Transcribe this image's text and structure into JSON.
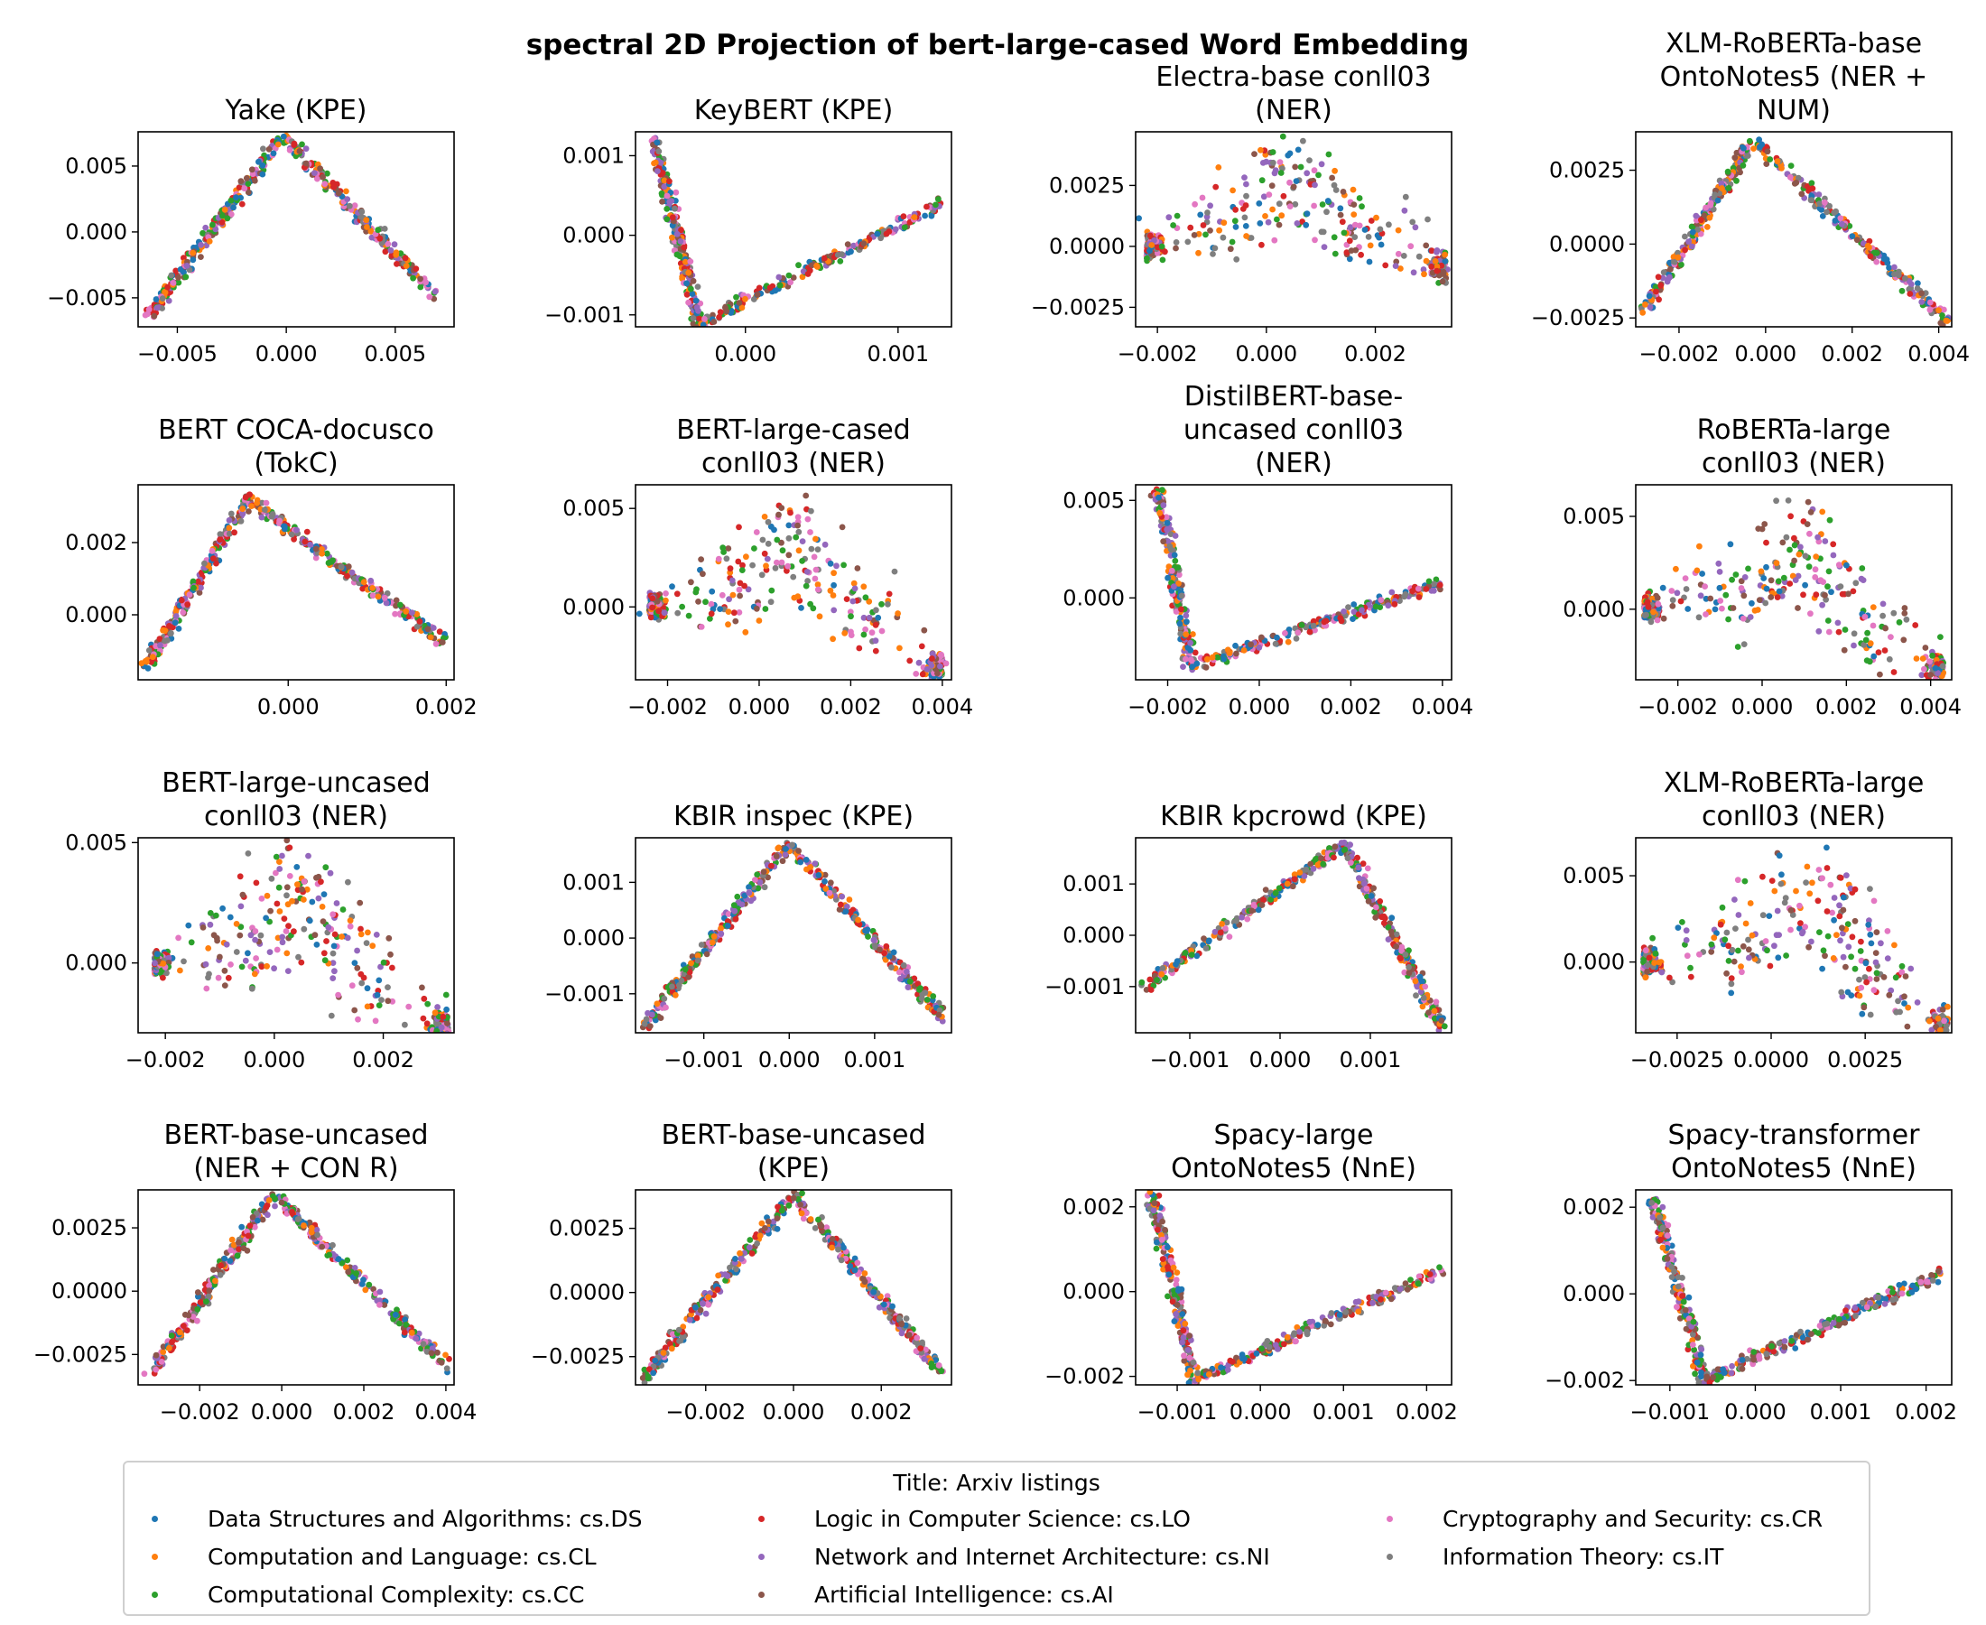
{
  "figure_title": "spectral 2D Projection of bert-large-cased Word Embedding",
  "legend": {
    "title": "Title: Arxiv listings",
    "items": [
      {
        "label": "Data Structures and Algorithms: cs.DS",
        "color": "#1f77b4"
      },
      {
        "label": "Computation and Language: cs.CL",
        "color": "#ff7f0e"
      },
      {
        "label": "Computational Complexity: cs.CC",
        "color": "#2ca02c"
      },
      {
        "label": "Logic in Computer Science: cs.LO",
        "color": "#d62728"
      },
      {
        "label": "Network and Internet Architecture: cs.NI",
        "color": "#9467bd"
      },
      {
        "label": "Artificial Intelligence: cs.AI",
        "color": "#8c564b"
      },
      {
        "label": "Cryptography and Security: cs.CR",
        "color": "#e377c2"
      },
      {
        "label": "Information Theory: cs.IT",
        "color": "#7f7f7f"
      }
    ]
  },
  "chart_data": [
    {
      "type": "scatter",
      "title": [
        "Yake (KPE)"
      ],
      "xlim": [
        -0.0068,
        0.0077
      ],
      "ylim": [
        -0.0072,
        0.0076
      ],
      "xticks": [
        {
          "v": -0.005,
          "l": "−0.005"
        },
        {
          "v": 0.0,
          "l": "0.000"
        },
        {
          "v": 0.005,
          "l": "0.005"
        }
      ],
      "yticks": [
        {
          "v": 0.005,
          "l": "0.005"
        },
        {
          "v": 0.0,
          "l": "0.000"
        },
        {
          "v": -0.005,
          "l": "−0.005"
        }
      ],
      "shape": "peak",
      "anchors": [
        [
          -0.0065,
          -0.0068
        ],
        [
          -0.0002,
          0.0072
        ],
        [
          0.007,
          -0.005
        ]
      ],
      "series": [
        "cs.DS",
        "cs.CL",
        "cs.CC",
        "cs.LO",
        "cs.NI",
        "cs.AI",
        "cs.CR",
        "cs.IT"
      ]
    },
    {
      "type": "scatter",
      "title": [
        "KeyBERT (KPE)"
      ],
      "xlim": [
        -0.00072,
        0.00135
      ],
      "ylim": [
        -0.00115,
        0.0013
      ],
      "xticks": [
        {
          "v": 0.0,
          "l": "0.000"
        },
        {
          "v": 0.001,
          "l": "0.001"
        }
      ],
      "yticks": [
        {
          "v": 0.001,
          "l": "0.001"
        },
        {
          "v": 0.0,
          "l": "0.000"
        },
        {
          "v": -0.001,
          "l": "−0.001"
        }
      ],
      "shape": "vee",
      "anchors": [
        [
          -0.0006,
          0.0012
        ],
        [
          -0.0003,
          -0.0011
        ],
        [
          0.0013,
          0.0004
        ]
      ],
      "series": [
        "cs.DS",
        "cs.CL",
        "cs.CC",
        "cs.LO",
        "cs.NI",
        "cs.AI",
        "cs.CR",
        "cs.IT"
      ]
    },
    {
      "type": "scatter",
      "title": [
        "Electra-base conll03",
        "(NER)"
      ],
      "xlim": [
        -0.0024,
        0.0034
      ],
      "ylim": [
        -0.0033,
        0.0047
      ],
      "xticks": [
        {
          "v": -0.002,
          "l": "−0.002"
        },
        {
          "v": 0.0,
          "l": "0.000"
        },
        {
          "v": 0.002,
          "l": "0.002"
        }
      ],
      "yticks": [
        {
          "v": 0.0025,
          "l": "0.0025"
        },
        {
          "v": 0.0,
          "l": "0.0000"
        },
        {
          "v": -0.0025,
          "l": "−0.0025"
        }
      ],
      "shape": "arch",
      "anchors": [
        [
          -0.0022,
          0.0
        ],
        [
          0.0005,
          0.0045
        ],
        [
          0.0033,
          -0.0008
        ]
      ],
      "series": [
        "cs.DS",
        "cs.CL",
        "cs.CC",
        "cs.LO",
        "cs.NI",
        "cs.AI",
        "cs.CR",
        "cs.IT"
      ]
    },
    {
      "type": "scatter",
      "title": [
        "XLM-RoBERTa-base",
        "OntoNotes5 (NER +",
        "NUM)"
      ],
      "xlim": [
        -0.003,
        0.0043
      ],
      "ylim": [
        -0.0028,
        0.0038
      ],
      "xticks": [
        {
          "v": -0.002,
          "l": "−0.002"
        },
        {
          "v": 0.0,
          "l": "0.000"
        },
        {
          "v": 0.002,
          "l": "0.002"
        },
        {
          "v": 0.004,
          "l": "0.004"
        }
      ],
      "yticks": [
        {
          "v": 0.0025,
          "l": "0.0025"
        },
        {
          "v": 0.0,
          "l": "0.0000"
        },
        {
          "v": -0.0025,
          "l": "−0.0025"
        }
      ],
      "shape": "peak",
      "anchors": [
        [
          -0.0028,
          -0.0023
        ],
        [
          -0.0003,
          0.0035
        ],
        [
          0.0042,
          -0.0026
        ]
      ],
      "series": [
        "cs.DS",
        "cs.CL",
        "cs.CC",
        "cs.LO",
        "cs.NI",
        "cs.AI",
        "cs.CR",
        "cs.IT"
      ]
    },
    {
      "type": "scatter",
      "title": [
        "BERT COCA-docusco",
        "(TokC)"
      ],
      "xlim": [
        -0.0019,
        0.0021
      ],
      "ylim": [
        -0.0018,
        0.0036
      ],
      "xticks": [
        {
          "v": 0.0,
          "l": "0.000"
        },
        {
          "v": 0.002,
          "l": "0.002"
        }
      ],
      "yticks": [
        {
          "v": 0.002,
          "l": "0.002"
        },
        {
          "v": 0.0,
          "l": "0.000"
        }
      ],
      "shape": "peak",
      "anchors": [
        [
          -0.0018,
          -0.0014
        ],
        [
          -0.0005,
          0.0032
        ],
        [
          0.002,
          -0.0008
        ]
      ],
      "series": [
        "cs.DS",
        "cs.CL",
        "cs.CC",
        "cs.LO",
        "cs.NI",
        "cs.AI",
        "cs.CR",
        "cs.IT"
      ]
    },
    {
      "type": "scatter",
      "title": [
        "BERT-large-cased",
        "conll03 (NER)"
      ],
      "xlim": [
        -0.0027,
        0.0042
      ],
      "ylim": [
        -0.0037,
        0.0062
      ],
      "xticks": [
        {
          "v": -0.002,
          "l": "−0.002"
        },
        {
          "v": 0.0,
          "l": "0.000"
        },
        {
          "v": 0.002,
          "l": "0.002"
        },
        {
          "v": 0.004,
          "l": "0.004"
        }
      ],
      "yticks": [
        {
          "v": 0.005,
          "l": "0.005"
        },
        {
          "v": 0.0,
          "l": "0.000"
        }
      ],
      "shape": "arch",
      "anchors": [
        [
          -0.0024,
          0.0
        ],
        [
          0.0007,
          0.0058
        ],
        [
          0.004,
          -0.003
        ]
      ],
      "series": [
        "cs.DS",
        "cs.CL",
        "cs.CC",
        "cs.LO",
        "cs.NI",
        "cs.AI",
        "cs.CR",
        "cs.IT"
      ]
    },
    {
      "type": "scatter",
      "title": [
        "DistilBERT-base-",
        "uncased conll03",
        "(NER)"
      ],
      "xlim": [
        -0.0027,
        0.0042
      ],
      "ylim": [
        -0.0042,
        0.0058
      ],
      "xticks": [
        {
          "v": -0.002,
          "l": "−0.002"
        },
        {
          "v": 0.0,
          "l": "0.000"
        },
        {
          "v": 0.002,
          "l": "0.002"
        },
        {
          "v": 0.004,
          "l": "0.004"
        }
      ],
      "yticks": [
        {
          "v": 0.005,
          "l": "0.005"
        },
        {
          "v": 0.0,
          "l": "0.000"
        }
      ],
      "shape": "vee",
      "anchors": [
        [
          -0.0022,
          0.0055
        ],
        [
          -0.0015,
          -0.0035
        ],
        [
          0.0039,
          0.0007
        ]
      ],
      "series": [
        "cs.DS",
        "cs.CL",
        "cs.CC",
        "cs.LO",
        "cs.NI",
        "cs.AI",
        "cs.CR",
        "cs.IT"
      ]
    },
    {
      "type": "scatter",
      "title": [
        "RoBERTa-large",
        "conll03 (NER)"
      ],
      "xlim": [
        -0.003,
        0.0045
      ],
      "ylim": [
        -0.0038,
        0.0067
      ],
      "xticks": [
        {
          "v": -0.002,
          "l": "−0.002"
        },
        {
          "v": 0.0,
          "l": "0.000"
        },
        {
          "v": 0.002,
          "l": "0.002"
        },
        {
          "v": 0.004,
          "l": "0.004"
        }
      ],
      "yticks": [
        {
          "v": 0.005,
          "l": "0.005"
        },
        {
          "v": 0.0,
          "l": "0.000"
        }
      ],
      "shape": "arch",
      "anchors": [
        [
          -0.0028,
          0.0
        ],
        [
          0.0008,
          0.0062
        ],
        [
          0.0043,
          -0.0032
        ]
      ],
      "series": [
        "cs.DS",
        "cs.CL",
        "cs.CC",
        "cs.LO",
        "cs.NI",
        "cs.AI",
        "cs.CR",
        "cs.IT"
      ]
    },
    {
      "type": "scatter",
      "title": [
        "BERT-large-uncased",
        "conll03 (NER)"
      ],
      "xlim": [
        -0.0025,
        0.0033
      ],
      "ylim": [
        -0.0029,
        0.0052
      ],
      "xticks": [
        {
          "v": -0.002,
          "l": "−0.002"
        },
        {
          "v": 0.0,
          "l": "0.000"
        },
        {
          "v": 0.002,
          "l": "0.002"
        }
      ],
      "yticks": [
        {
          "v": 0.005,
          "l": "0.005"
        },
        {
          "v": 0.0,
          "l": "0.000"
        }
      ],
      "shape": "arch",
      "anchors": [
        [
          -0.0022,
          0.0
        ],
        [
          0.0005,
          0.005
        ],
        [
          0.0032,
          -0.0025
        ]
      ],
      "series": [
        "cs.DS",
        "cs.CL",
        "cs.CC",
        "cs.LO",
        "cs.NI",
        "cs.AI",
        "cs.CR",
        "cs.IT"
      ]
    },
    {
      "type": "scatter",
      "title": [
        "KBIR inspec (KPE)"
      ],
      "xlim": [
        -0.0018,
        0.0019
      ],
      "ylim": [
        -0.0017,
        0.0018
      ],
      "xticks": [
        {
          "v": -0.001,
          "l": "−0.001"
        },
        {
          "v": 0.0,
          "l": "0.000"
        },
        {
          "v": 0.001,
          "l": "0.001"
        }
      ],
      "yticks": [
        {
          "v": 0.001,
          "l": "0.001"
        },
        {
          "v": 0.0,
          "l": "0.000"
        },
        {
          "v": -0.001,
          "l": "−0.001"
        }
      ],
      "shape": "peak",
      "anchors": [
        [
          -0.0017,
          -0.0016
        ],
        [
          0.0,
          0.0017
        ],
        [
          0.0018,
          -0.0014
        ]
      ],
      "series": [
        "cs.DS",
        "cs.CL",
        "cs.CC",
        "cs.LO",
        "cs.NI",
        "cs.AI",
        "cs.CR",
        "cs.IT"
      ]
    },
    {
      "type": "scatter",
      "title": [
        "KBIR kpcrowd (KPE)"
      ],
      "xlim": [
        -0.0016,
        0.0019
      ],
      "ylim": [
        -0.0019,
        0.0019
      ],
      "xticks": [
        {
          "v": -0.001,
          "l": "−0.001"
        },
        {
          "v": 0.0,
          "l": "0.000"
        },
        {
          "v": 0.001,
          "l": "0.001"
        }
      ],
      "yticks": [
        {
          "v": 0.001,
          "l": "0.001"
        },
        {
          "v": 0.0,
          "l": "0.000"
        },
        {
          "v": -0.001,
          "l": "−0.001"
        }
      ],
      "shape": "peak",
      "anchors": [
        [
          -0.0015,
          -0.001
        ],
        [
          0.0007,
          0.0018
        ],
        [
          0.0018,
          -0.0018
        ]
      ],
      "series": [
        "cs.DS",
        "cs.CL",
        "cs.CC",
        "cs.LO",
        "cs.NI",
        "cs.AI",
        "cs.CR",
        "cs.IT"
      ]
    },
    {
      "type": "scatter",
      "title": [
        "XLM-RoBERTa-large",
        "conll03 (NER)"
      ],
      "xlim": [
        -0.0036,
        0.0048
      ],
      "ylim": [
        -0.0041,
        0.0072
      ],
      "xticks": [
        {
          "v": -0.0025,
          "l": "−0.0025"
        },
        {
          "v": 0.0,
          "l": "0.0000"
        },
        {
          "v": 0.0025,
          "l": "0.0025"
        }
      ],
      "yticks": [
        {
          "v": 0.005,
          "l": "0.005"
        },
        {
          "v": 0.0,
          "l": "0.000"
        }
      ],
      "shape": "arch",
      "anchors": [
        [
          -0.0034,
          0.0
        ],
        [
          0.0015,
          0.0068
        ],
        [
          0.0047,
          -0.0036
        ]
      ],
      "series": [
        "cs.DS",
        "cs.CL",
        "cs.CC",
        "cs.LO",
        "cs.NI",
        "cs.AI",
        "cs.CR",
        "cs.IT"
      ]
    },
    {
      "type": "scatter",
      "title": [
        "BERT-base-uncased",
        "(NER + CON R)"
      ],
      "xlim": [
        -0.0035,
        0.0042
      ],
      "ylim": [
        -0.0037,
        0.004
      ],
      "xticks": [
        {
          "v": -0.002,
          "l": "−0.002"
        },
        {
          "v": 0.0,
          "l": "0.000"
        },
        {
          "v": 0.002,
          "l": "0.002"
        },
        {
          "v": 0.004,
          "l": "0.004"
        }
      ],
      "yticks": [
        {
          "v": 0.0025,
          "l": "0.0025"
        },
        {
          "v": 0.0,
          "l": "0.0000"
        },
        {
          "v": -0.0025,
          "l": "−0.0025"
        }
      ],
      "shape": "peak",
      "anchors": [
        [
          -0.0032,
          -0.0033
        ],
        [
          -0.0002,
          0.0038
        ],
        [
          0.004,
          -0.0029
        ]
      ],
      "series": [
        "cs.DS",
        "cs.CL",
        "cs.CC",
        "cs.LO",
        "cs.NI",
        "cs.AI",
        "cs.CR",
        "cs.IT"
      ]
    },
    {
      "type": "scatter",
      "title": [
        "BERT-base-uncased",
        "(KPE)"
      ],
      "xlim": [
        -0.0036,
        0.0036
      ],
      "ylim": [
        -0.0036,
        0.004
      ],
      "xticks": [
        {
          "v": -0.002,
          "l": "−0.002"
        },
        {
          "v": 0.0,
          "l": "0.000"
        },
        {
          "v": 0.002,
          "l": "0.002"
        }
      ],
      "yticks": [
        {
          "v": 0.0025,
          "l": "0.0025"
        },
        {
          "v": 0.0,
          "l": "0.0000"
        },
        {
          "v": -0.0025,
          "l": "−0.0025"
        }
      ],
      "shape": "peak",
      "anchors": [
        [
          -0.0034,
          -0.0033
        ],
        [
          0.0,
          0.0038
        ],
        [
          0.0033,
          -0.003
        ]
      ],
      "series": [
        "cs.DS",
        "cs.CL",
        "cs.CC",
        "cs.LO",
        "cs.NI",
        "cs.AI",
        "cs.CR",
        "cs.IT"
      ]
    },
    {
      "type": "scatter",
      "title": [
        "Spacy-large",
        "OntoNotes5 (NnE)"
      ],
      "xlim": [
        -0.0015,
        0.0023
      ],
      "ylim": [
        -0.0022,
        0.0024
      ],
      "xticks": [
        {
          "v": -0.001,
          "l": "−0.001"
        },
        {
          "v": 0.0,
          "l": "0.000"
        },
        {
          "v": 0.001,
          "l": "0.001"
        },
        {
          "v": 0.002,
          "l": "0.002"
        }
      ],
      "yticks": [
        {
          "v": 0.002,
          "l": "0.002"
        },
        {
          "v": 0.0,
          "l": "0.000"
        },
        {
          "v": -0.002,
          "l": "−0.002"
        }
      ],
      "shape": "vee",
      "anchors": [
        [
          -0.0013,
          0.0023
        ],
        [
          -0.0008,
          -0.0021
        ],
        [
          0.0022,
          0.0005
        ]
      ],
      "series": [
        "cs.DS",
        "cs.CL",
        "cs.CC",
        "cs.LO",
        "cs.NI",
        "cs.AI",
        "cs.CR",
        "cs.IT"
      ]
    },
    {
      "type": "scatter",
      "title": [
        "Spacy-transformer",
        "OntoNotes5 (NnE)"
      ],
      "xlim": [
        -0.0014,
        0.0023
      ],
      "ylim": [
        -0.0021,
        0.0024
      ],
      "xticks": [
        {
          "v": -0.001,
          "l": "−0.001"
        },
        {
          "v": 0.0,
          "l": "0.000"
        },
        {
          "v": 0.001,
          "l": "0.001"
        },
        {
          "v": 0.002,
          "l": "0.002"
        }
      ],
      "yticks": [
        {
          "v": 0.002,
          "l": "0.002"
        },
        {
          "v": 0.0,
          "l": "0.000"
        },
        {
          "v": -0.002,
          "l": "−0.002"
        }
      ],
      "shape": "vee",
      "anchors": [
        [
          -0.0012,
          0.0022
        ],
        [
          -0.0006,
          -0.002
        ],
        [
          0.0022,
          0.0005
        ]
      ],
      "series": [
        "cs.DS",
        "cs.CL",
        "cs.CC",
        "cs.LO",
        "cs.NI",
        "cs.AI",
        "cs.CR",
        "cs.IT"
      ]
    }
  ]
}
